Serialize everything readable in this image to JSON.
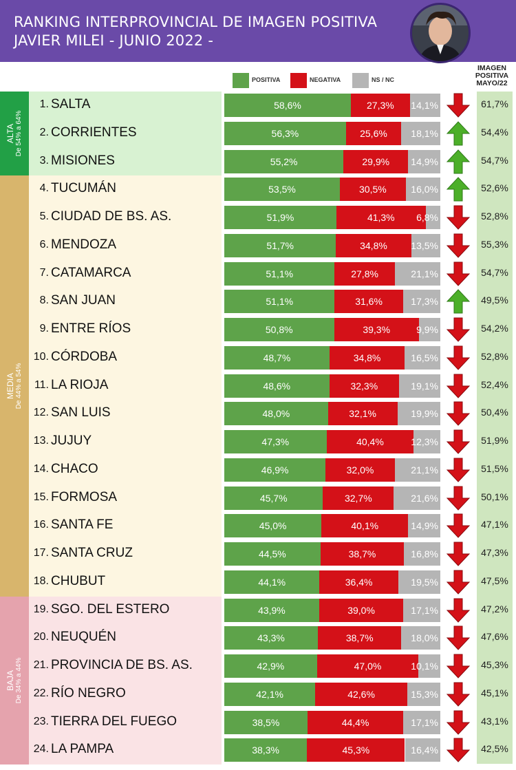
{
  "header": {
    "title_line1": "RANKING INTERPROVINCIAL DE IMAGEN POSITIVA",
    "title_line2": "JAVIER MILEI - JUNIO 2022 -",
    "background": "#6a4aa8"
  },
  "legend": {
    "positiva": "POSITIVA",
    "negativa": "NEGATIVA",
    "nsnc": "NS / NC"
  },
  "prev_column": {
    "line1": "IMAGEN",
    "line2": "POSITIVA",
    "line3": "MAYO/22"
  },
  "colors": {
    "positiva": "#5ea34a",
    "negativa": "#d41118",
    "nsnc": "#b5b5b5",
    "arrow_up": "#4caf29",
    "arrow_down": "#d41118",
    "alta": "#22a046",
    "media": "#d8b56c",
    "baja": "#e5a3ad"
  },
  "groups": [
    {
      "name": "ALTA",
      "range": "De 54% a 64%",
      "first_row": 0,
      "last_row": 2
    },
    {
      "name": "MEDIA",
      "range": "De 44% a 54%",
      "first_row": 3,
      "last_row": 17
    },
    {
      "name": "BAJA",
      "range": "De 34% a 44%",
      "first_row": 18,
      "last_row": 23
    }
  ],
  "chart_data": {
    "type": "bar",
    "stacked": true,
    "series": [
      {
        "name": "POSITIVA",
        "values": [
          58.6,
          56.3,
          55.2,
          53.5,
          51.9,
          51.7,
          51.1,
          51.1,
          50.8,
          48.7,
          48.6,
          48.0,
          47.3,
          46.9,
          45.7,
          45.0,
          44.5,
          44.1,
          43.9,
          43.3,
          42.9,
          42.1,
          38.5,
          38.3
        ]
      },
      {
        "name": "NEGATIVA",
        "values": [
          27.3,
          25.6,
          29.9,
          30.5,
          41.3,
          34.8,
          27.8,
          31.6,
          39.3,
          34.8,
          32.3,
          32.1,
          40.4,
          32.0,
          32.7,
          40.1,
          38.7,
          36.4,
          39.0,
          38.7,
          47.0,
          42.6,
          44.4,
          45.3
        ]
      },
      {
        "name": "NS / NC",
        "values": [
          14.1,
          18.1,
          14.9,
          16.0,
          6.8,
          13.5,
          21.1,
          17.3,
          9.9,
          16.5,
          19.1,
          19.9,
          12.3,
          21.1,
          21.6,
          14.9,
          16.8,
          19.5,
          17.1,
          18.0,
          10.1,
          15.3,
          17.1,
          16.4
        ]
      }
    ],
    "rows": [
      {
        "rank": "1.",
        "province": "SALTA",
        "pos": "58,6%",
        "neg": "27,3%",
        "nsnc": "14,1%",
        "trend": "down",
        "prev": "61,7%"
      },
      {
        "rank": "2.",
        "province": "CORRIENTES",
        "pos": "56,3%",
        "neg": "25,6%",
        "nsnc": "18,1%",
        "trend": "up",
        "prev": "54,4%"
      },
      {
        "rank": "3.",
        "province": "MISIONES",
        "pos": "55,2%",
        "neg": "29,9%",
        "nsnc": "14,9%",
        "trend": "up",
        "prev": "54,7%"
      },
      {
        "rank": "4.",
        "province": "TUCUMÁN",
        "pos": "53,5%",
        "neg": "30,5%",
        "nsnc": "16,0%",
        "trend": "up",
        "prev": "52,6%"
      },
      {
        "rank": "5.",
        "province": "CIUDAD DE BS. AS.",
        "pos": "51,9%",
        "neg": "41,3%",
        "nsnc": "6,8%",
        "trend": "down",
        "prev": "52,8%"
      },
      {
        "rank": "6.",
        "province": "MENDOZA",
        "pos": "51,7%",
        "neg": "34,8%",
        "nsnc": "13,5%",
        "trend": "down",
        "prev": "55,3%"
      },
      {
        "rank": "7.",
        "province": "CATAMARCA",
        "pos": "51,1%",
        "neg": "27,8%",
        "nsnc": "21,1%",
        "trend": "down",
        "prev": "54,7%"
      },
      {
        "rank": "8.",
        "province": "SAN JUAN",
        "pos": "51,1%",
        "neg": "31,6%",
        "nsnc": "17,3%",
        "trend": "up",
        "prev": "49,5%"
      },
      {
        "rank": "9.",
        "province": "ENTRE RÍOS",
        "pos": "50,8%",
        "neg": "39,3%",
        "nsnc": "9,9%",
        "trend": "down",
        "prev": "54,2%"
      },
      {
        "rank": "10.",
        "province": "CÓRDOBA",
        "pos": "48,7%",
        "neg": "34,8%",
        "nsnc": "16,5%",
        "trend": "down",
        "prev": "52,8%"
      },
      {
        "rank": "11.",
        "province": "LA RIOJA",
        "pos": "48,6%",
        "neg": "32,3%",
        "nsnc": "19,1%",
        "trend": "down",
        "prev": "52,4%"
      },
      {
        "rank": "12.",
        "province": "SAN LUIS",
        "pos": "48,0%",
        "neg": "32,1%",
        "nsnc": "19,9%",
        "trend": "down",
        "prev": "50,4%"
      },
      {
        "rank": "13.",
        "province": "JUJUY",
        "pos": "47,3%",
        "neg": "40,4%",
        "nsnc": "12,3%",
        "trend": "down",
        "prev": "51,9%"
      },
      {
        "rank": "14.",
        "province": "CHACO",
        "pos": "46,9%",
        "neg": "32,0%",
        "nsnc": "21,1%",
        "trend": "down",
        "prev": "51,5%"
      },
      {
        "rank": "15.",
        "province": "FORMOSA",
        "pos": "45,7%",
        "neg": "32,7%",
        "nsnc": "21,6%",
        "trend": "down",
        "prev": "50,1%"
      },
      {
        "rank": "16.",
        "province": "SANTA FE",
        "pos": "45,0%",
        "neg": "40,1%",
        "nsnc": "14,9%",
        "trend": "down",
        "prev": "47,1%"
      },
      {
        "rank": "17.",
        "province": "SANTA CRUZ",
        "pos": "44,5%",
        "neg": "38,7%",
        "nsnc": "16,8%",
        "trend": "down",
        "prev": "47,3%"
      },
      {
        "rank": "18.",
        "province": "CHUBUT",
        "pos": "44,1%",
        "neg": "36,4%",
        "nsnc": "19,5%",
        "trend": "down",
        "prev": "47,5%"
      },
      {
        "rank": "19.",
        "province": "SGO. DEL ESTERO",
        "pos": "43,9%",
        "neg": "39,0%",
        "nsnc": "17,1%",
        "trend": "down",
        "prev": "47,2%"
      },
      {
        "rank": "20.",
        "province": "NEUQUÉN",
        "pos": "43,3%",
        "neg": "38,7%",
        "nsnc": "18,0%",
        "trend": "down",
        "prev": "47,6%"
      },
      {
        "rank": "21.",
        "province": "PROVINCIA DE BS. AS.",
        "pos": "42,9%",
        "neg": "47,0%",
        "nsnc": "10,1%",
        "trend": "down",
        "prev": "45,3%"
      },
      {
        "rank": "22.",
        "province": "RÍO NEGRO",
        "pos": "42,1%",
        "neg": "42,6%",
        "nsnc": "15,3%",
        "trend": "down",
        "prev": "45,1%"
      },
      {
        "rank": "23.",
        "province": "TIERRA DEL FUEGO",
        "pos": "38,5%",
        "neg": "44,4%",
        "nsnc": "17,1%",
        "trend": "down",
        "prev": "43,1%"
      },
      {
        "rank": "24.",
        "province": "LA PAMPA",
        "pos": "38,3%",
        "neg": "45,3%",
        "nsnc": "16,4%",
        "trend": "down",
        "prev": "42,5%"
      }
    ]
  }
}
